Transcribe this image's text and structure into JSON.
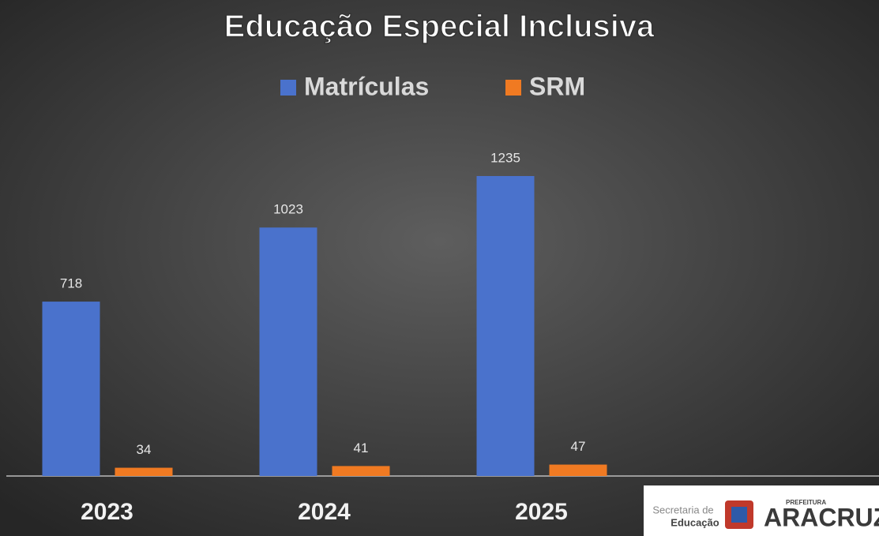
{
  "chart_data": {
    "type": "bar",
    "title": "Educação Especial Inclusiva",
    "categories": [
      "2023",
      "2024",
      "2025"
    ],
    "series": [
      {
        "name": "Matrículas",
        "color": "#4a72cc",
        "values": [
          718,
          1023,
          1235
        ]
      },
      {
        "name": "SRM",
        "color": "#f07a22",
        "values": [
          34,
          41,
          47
        ]
      }
    ],
    "legend": "top",
    "grid": false
  },
  "logo": {
    "line1": "Secretaria de",
    "line2": "Educação",
    "prefix": "PREFEITURA",
    "name": "ARACRUZ"
  }
}
